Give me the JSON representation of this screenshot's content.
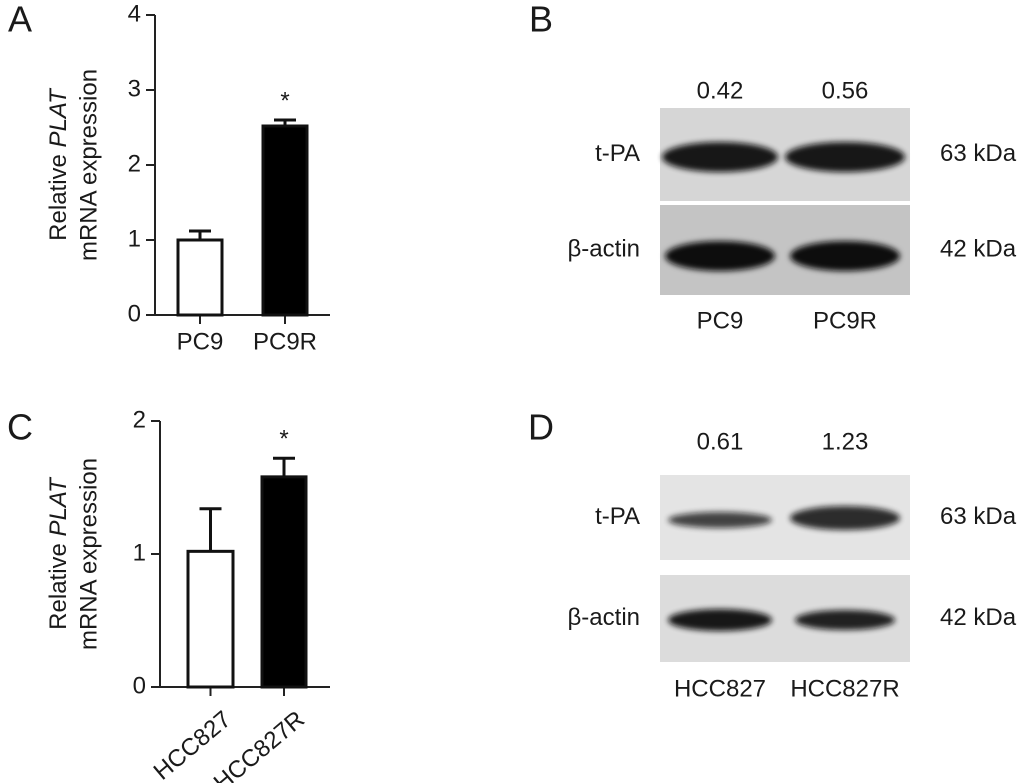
{
  "chart_data": [
    {
      "type": "bar",
      "panel": "A",
      "y_label": [
        "Relative",
        "PLAT",
        "mRNA expression"
      ],
      "categories": [
        "PC9",
        "PC9R"
      ],
      "values": [
        1.0,
        2.52
      ],
      "errors": [
        0.12,
        0.08
      ],
      "colors": [
        "#ffffff",
        "#000000"
      ],
      "ylim": [
        0,
        4
      ],
      "yticks": [
        0,
        1,
        2,
        3,
        4
      ],
      "annotation": {
        "text": "*",
        "category_index": 1
      }
    },
    {
      "type": "bar",
      "panel": "C",
      "y_label": [
        "Relative",
        "PLAT",
        "mRNA expression"
      ],
      "categories": [
        "HCC827",
        "HCC827R"
      ],
      "values": [
        1.02,
        1.58
      ],
      "errors": [
        0.32,
        0.14
      ],
      "colors": [
        "#ffffff",
        "#000000"
      ],
      "ylim": [
        0,
        2
      ],
      "yticks": [
        0,
        1,
        2
      ],
      "annotation": {
        "text": "*",
        "category_index": 1
      }
    }
  ],
  "blots": [
    {
      "panel": "B",
      "quantification": [
        0.42,
        0.56
      ],
      "rows": [
        {
          "label": "t-PA",
          "size": "63 kDa"
        },
        {
          "label": "β-actin",
          "size": "42 kDa"
        }
      ],
      "lanes": [
        "PC9",
        "PC9R"
      ]
    },
    {
      "panel": "D",
      "quantification": [
        0.61,
        1.23
      ],
      "rows": [
        {
          "label": "t-PA",
          "size": "63 kDa"
        },
        {
          "label": "β-actin",
          "size": "42 kDa"
        }
      ],
      "lanes": [
        "HCC827",
        "HCC827R"
      ]
    }
  ]
}
